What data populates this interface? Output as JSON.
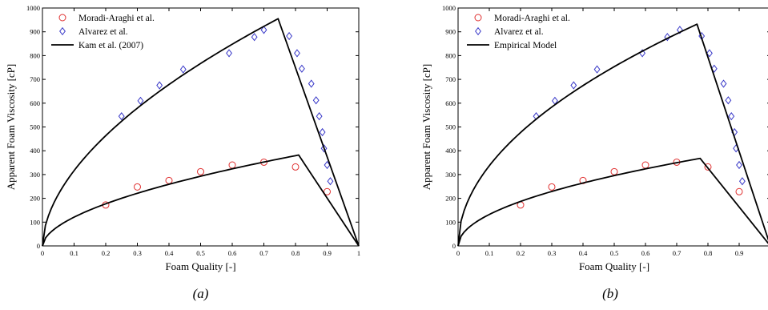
{
  "chart_data": [
    {
      "type": "scatter",
      "panel_caption": "(a)",
      "xlabel": "Foam Quality [-]",
      "ylabel": "Apparent Foam Viscosity [cP]",
      "xlim": [
        0,
        1
      ],
      "ylim": [
        0,
        1000
      ],
      "xticks": [
        0,
        0.1,
        0.2,
        0.3,
        0.4,
        0.5,
        0.6,
        0.7,
        0.8,
        0.9,
        1
      ],
      "xtick_labels": [
        "0",
        "0.1",
        "0.2",
        "0.3",
        "0.4",
        "0.5",
        "0.6",
        "0.7",
        "0.8",
        "0.9",
        "1"
      ],
      "yticks": [
        0,
        100,
        200,
        300,
        400,
        500,
        600,
        700,
        800,
        900,
        1000
      ],
      "ytick_labels": [
        "0",
        "100",
        "200",
        "300",
        "400",
        "500",
        "600",
        "700",
        "800",
        "900",
        "1000"
      ],
      "grid": false,
      "legend_position": "top-left",
      "series": [
        {
          "name": "Moradi-Araghi et al.",
          "kind": "marker",
          "marker": "circle",
          "color": "#e03030",
          "x": [
            0.2,
            0.3,
            0.4,
            0.5,
            0.6,
            0.7,
            0.8,
            0.9
          ],
          "y": [
            172,
            248,
            275,
            312,
            340,
            352,
            332,
            228
          ]
        },
        {
          "name": "Alvarez et al.",
          "kind": "marker",
          "marker": "diamond",
          "color": "#3838c8",
          "x": [
            0.25,
            0.31,
            0.37,
            0.445,
            0.59,
            0.67,
            0.7,
            0.78,
            0.805,
            0.82,
            0.85,
            0.865,
            0.875,
            0.885,
            0.89,
            0.9,
            0.91
          ],
          "y": [
            545,
            610,
            675,
            742,
            810,
            878,
            908,
            882,
            810,
            745,
            682,
            612,
            545,
            478,
            410,
            340,
            272
          ]
        },
        {
          "name": "Kam et al. (2007)",
          "kind": "line",
          "color": "#000000",
          "curves": [
            {
              "peak_x": 0.745,
              "peak_y": 955,
              "exponent": 0.55,
              "end_x": 1.0
            },
            {
              "peak_x": 0.81,
              "peak_y": 382,
              "exponent": 0.55,
              "end_x": 1.0
            }
          ]
        }
      ]
    },
    {
      "type": "scatter",
      "panel_caption": "(b)",
      "xlabel": "Foam Quality [-]",
      "ylabel": "Apparent Foam Viscosity [cP]",
      "xlim": [
        0,
        1
      ],
      "ylim": [
        0,
        1000
      ],
      "xticks": [
        0,
        0.1,
        0.2,
        0.3,
        0.4,
        0.5,
        0.6,
        0.7,
        0.8,
        0.9
      ],
      "xtick_labels": [
        "0",
        "0.1",
        "0.2",
        "0.3",
        "0.4",
        "0.5",
        "0.6",
        "0.7",
        "0.8",
        "0.9"
      ],
      "yticks": [
        0,
        100,
        200,
        300,
        400,
        500,
        600,
        700,
        800,
        900,
        1000
      ],
      "ytick_labels": [
        "0",
        "100",
        "200",
        "300",
        "400",
        "500",
        "600",
        "700",
        "800",
        "900",
        "1000"
      ],
      "grid": false,
      "legend_position": "top-left",
      "series": [
        {
          "name": "Moradi-Araghi et al.",
          "kind": "marker",
          "marker": "circle",
          "color": "#e03030",
          "x": [
            0.2,
            0.3,
            0.4,
            0.5,
            0.6,
            0.7,
            0.8,
            0.9
          ],
          "y": [
            172,
            248,
            275,
            312,
            340,
            352,
            332,
            228
          ]
        },
        {
          "name": "Alvarez et al.",
          "kind": "marker",
          "marker": "diamond",
          "color": "#3838c8",
          "x": [
            0.25,
            0.31,
            0.37,
            0.445,
            0.59,
            0.67,
            0.71,
            0.78,
            0.805,
            0.82,
            0.85,
            0.865,
            0.875,
            0.885,
            0.89,
            0.9,
            0.91
          ],
          "y": [
            545,
            610,
            675,
            742,
            810,
            878,
            908,
            882,
            810,
            745,
            682,
            612,
            545,
            478,
            410,
            340,
            272
          ]
        },
        {
          "name": "Empirical Model",
          "kind": "line",
          "color": "#000000",
          "curves": [
            {
              "peak_x": 0.765,
              "peak_y": 932,
              "exponent": 0.5,
              "end_x": 1.0
            },
            {
              "peak_x": 0.775,
              "peak_y": 368,
              "exponent": 0.5,
              "end_x": 1.0
            }
          ]
        }
      ]
    }
  ]
}
